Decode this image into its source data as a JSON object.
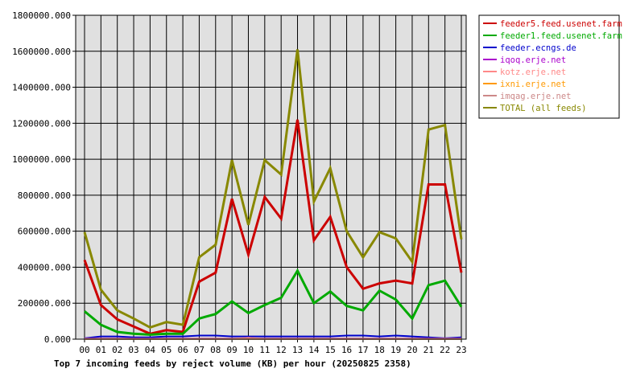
{
  "chart_data": {
    "type": "line",
    "title": "Top 7 incoming feeds by reject volume (KB) per hour (20250825 2358)",
    "xlabel": "",
    "ylabel": "",
    "categories": [
      "00",
      "01",
      "02",
      "03",
      "04",
      "05",
      "06",
      "07",
      "08",
      "09",
      "10",
      "11",
      "12",
      "13",
      "14",
      "15",
      "16",
      "17",
      "18",
      "19",
      "20",
      "21",
      "22",
      "23"
    ],
    "ylim": [
      0,
      1800000
    ],
    "yticks": [
      "0.000",
      "200000.000",
      "400000.000",
      "600000.000",
      "800000.000",
      "1000000.000",
      "1200000.000",
      "1400000.000",
      "1600000.000",
      "1800000.000"
    ],
    "grid": true,
    "legend_position": "right",
    "series": [
      {
        "name": "feeder5.feed.usenet.farm",
        "color": "#cc0000",
        "emphasis": true,
        "values": [
          440000,
          190000,
          110000,
          70000,
          30000,
          50000,
          40000,
          320000,
          370000,
          780000,
          470000,
          790000,
          670000,
          1220000,
          550000,
          680000,
          400000,
          280000,
          310000,
          325000,
          310000,
          860000,
          860000,
          370000
        ]
      },
      {
        "name": "feeder1.feed.usenet.farm",
        "color": "#00aa00",
        "emphasis": true,
        "values": [
          155000,
          80000,
          40000,
          30000,
          25000,
          30000,
          30000,
          115000,
          140000,
          210000,
          145000,
          190000,
          230000,
          380000,
          200000,
          265000,
          185000,
          160000,
          270000,
          220000,
          115000,
          300000,
          325000,
          180000
        ]
      },
      {
        "name": "feeder.ecngs.de",
        "color": "#0000cc",
        "emphasis": false,
        "values": [
          5000,
          15000,
          15000,
          10000,
          10000,
          15000,
          15000,
          20000,
          20000,
          15000,
          15000,
          15000,
          15000,
          15000,
          15000,
          15000,
          20000,
          20000,
          15000,
          20000,
          15000,
          10000,
          5000,
          10000
        ]
      },
      {
        "name": "iqoq.erje.net",
        "color": "#aa00cc",
        "emphasis": false,
        "values": [
          3000,
          3000,
          3000,
          3000,
          3000,
          3000,
          3000,
          3000,
          3000,
          3000,
          3000,
          3000,
          3000,
          3000,
          3000,
          3000,
          3000,
          3000,
          3000,
          3000,
          3000,
          3000,
          3000,
          3000
        ]
      },
      {
        "name": "kotz.erje.net",
        "color": "#ff8888",
        "emphasis": false,
        "values": [
          2000,
          2000,
          2000,
          2000,
          2000,
          2000,
          2000,
          2000,
          2000,
          2000,
          8000,
          2000,
          2000,
          2000,
          2000,
          2000,
          2000,
          2000,
          2000,
          2000,
          2000,
          2000,
          2000,
          2000
        ]
      },
      {
        "name": "ixni.erje.net",
        "color": "#ff9900",
        "emphasis": false,
        "values": [
          1500,
          1500,
          1500,
          1500,
          1500,
          1500,
          1500,
          1500,
          1500,
          1500,
          1500,
          1500,
          1500,
          1500,
          1500,
          1500,
          1500,
          1500,
          1500,
          1500,
          1500,
          1500,
          1500,
          1500
        ]
      },
      {
        "name": "imqag.erje.net",
        "color": "#cc8888",
        "emphasis": false,
        "values": [
          1000,
          1000,
          1000,
          1000,
          1000,
          1000,
          1000,
          1000,
          1000,
          1000,
          1000,
          1000,
          1000,
          1000,
          1000,
          1000,
          1000,
          1000,
          1000,
          1000,
          1000,
          1000,
          1000,
          1000
        ]
      },
      {
        "name": "TOTAL (all feeds)",
        "color": "#888800",
        "emphasis": true,
        "values": [
          595000,
          275000,
          160000,
          115000,
          65000,
          95000,
          80000,
          455000,
          525000,
          995000,
          635000,
          995000,
          915000,
          1610000,
          765000,
          950000,
          600000,
          455000,
          595000,
          560000,
          430000,
          1165000,
          1190000,
          555000
        ]
      }
    ]
  }
}
